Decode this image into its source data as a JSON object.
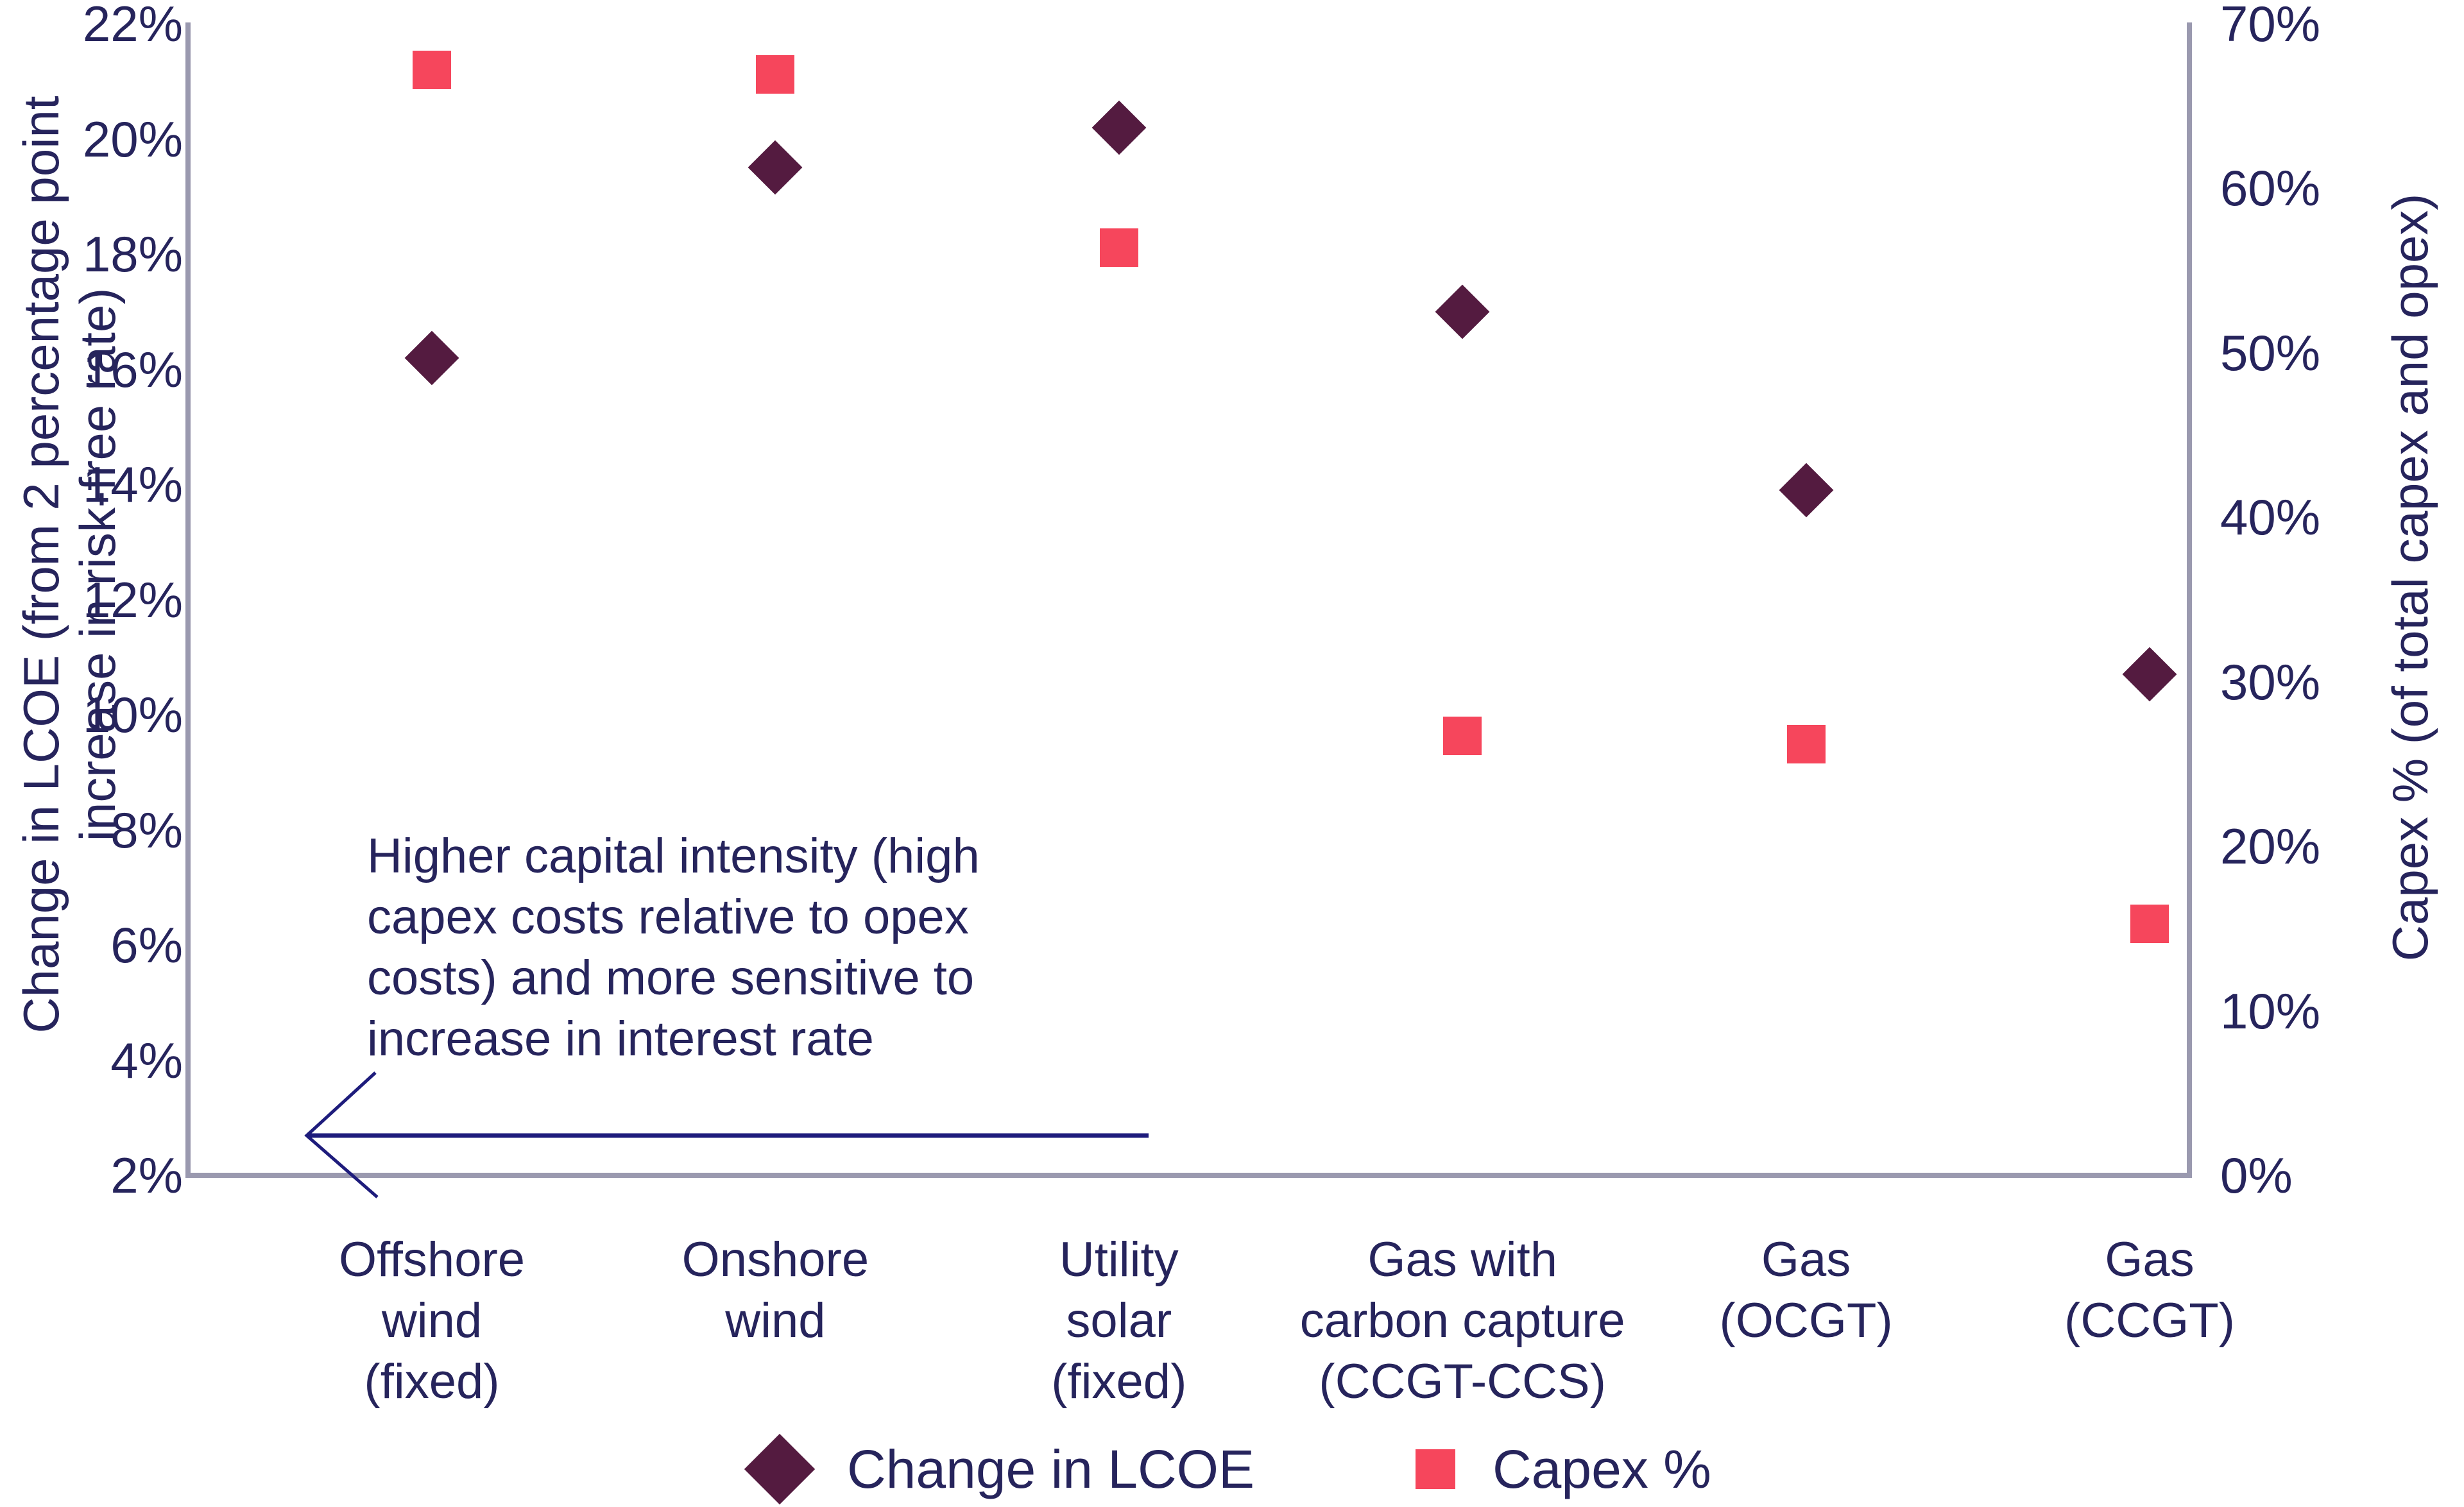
{
  "chart_data": {
    "type": "scatter",
    "categories": [
      "Offshore wind (fixed)",
      "Onshore wind",
      "Utility solar (fixed)",
      "Gas with carbon capture (CCGT-CCS)",
      "Gas (OCGT)",
      "Gas (CCGT)"
    ],
    "category_label_lines": [
      [
        "Offshore",
        "wind",
        "(fixed)"
      ],
      [
        "Onshore",
        "wind"
      ],
      [
        "Utility",
        "solar",
        "(fixed)"
      ],
      [
        "Gas with",
        "carbon capture",
        "(CCGT-CCS)"
      ],
      [
        "Gas",
        "(OCGT)"
      ],
      [
        "Gas",
        "(CCGT)"
      ]
    ],
    "series": [
      {
        "name": "Change in LCOE",
        "axis": "left",
        "marker": "diamond",
        "color": "#541b40",
        "values": [
          16.2,
          19.5,
          20.2,
          17.0,
          13.9,
          10.7
        ]
      },
      {
        "name": "Capex %",
        "axis": "right",
        "marker": "square",
        "color": "#f6465c",
        "values": [
          67.2,
          66.9,
          56.4,
          26.7,
          26.2,
          15.3
        ]
      }
    ],
    "left_axis": {
      "label_lines": [
        "Change in LCOE (from 2 percentage point",
        "increase in risk-free rate)"
      ],
      "ticks": [
        "22%",
        "20%",
        "18%",
        "16%",
        "14%",
        "12%",
        "10%",
        "8%",
        "6%",
        "4%",
        "2%"
      ],
      "min": 2,
      "max": 22
    },
    "right_axis": {
      "label": "Capex % (of total capex and opex)",
      "ticks": [
        "70%",
        "60%",
        "50%",
        "40%",
        "30%",
        "20%",
        "10%",
        "0%"
      ],
      "min": 0,
      "max": 70
    },
    "annotation": {
      "lines": [
        "Higher capital intensity (high",
        "capex costs relative to opex",
        "costs) and more sensitive to",
        "increase in interest rate"
      ]
    },
    "legend": [
      {
        "label": "Change in LCOE",
        "marker": "diamond"
      },
      {
        "label": "Capex %",
        "marker": "square"
      }
    ],
    "grid": false,
    "legend_position": "bottom-center",
    "colors": {
      "text": "#26245c",
      "axis_line": "#9a99af",
      "diamond": "#541b40",
      "square": "#f6465c",
      "arrow": "#1e1c7c"
    }
  }
}
